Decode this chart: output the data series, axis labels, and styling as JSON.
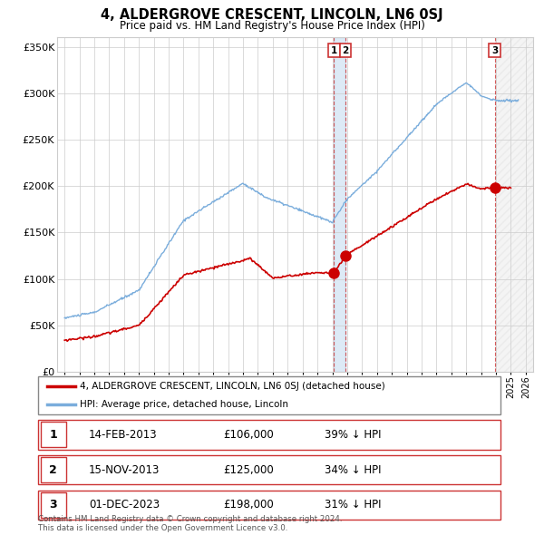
{
  "title": "4, ALDERGROVE CRESCENT, LINCOLN, LN6 0SJ",
  "subtitle": "Price paid vs. HM Land Registry's House Price Index (HPI)",
  "hpi_color": "#7aaddc",
  "price_color": "#cc0000",
  "background_color": "#ffffff",
  "grid_color": "#cccccc",
  "ylim": [
    0,
    360000
  ],
  "yticks": [
    0,
    50000,
    100000,
    150000,
    200000,
    250000,
    300000,
    350000
  ],
  "ytick_labels": [
    "£0",
    "£50K",
    "£100K",
    "£150K",
    "£200K",
    "£250K",
    "£300K",
    "£350K"
  ],
  "legend_entries": [
    {
      "label": "4, ALDERGROVE CRESCENT, LINCOLN, LN6 0SJ (detached house)",
      "color": "#cc0000"
    },
    {
      "label": "HPI: Average price, detached house, Lincoln",
      "color": "#7aaddc"
    }
  ],
  "table_rows": [
    {
      "num": "1",
      "date": "14-FEB-2013",
      "price": "£106,000",
      "pct": "39% ↓ HPI"
    },
    {
      "num": "2",
      "date": "15-NOV-2013",
      "price": "£125,000",
      "pct": "34% ↓ HPI"
    },
    {
      "num": "3",
      "date": "01-DEC-2023",
      "price": "£198,000",
      "pct": "31% ↓ HPI"
    }
  ],
  "footnote": "Contains HM Land Registry data © Crown copyright and database right 2024.\nThis data is licensed under the Open Government Licence v3.0.",
  "xlim": [
    1994.5,
    2026.5
  ],
  "tx1_x": 2013.12,
  "tx1_y": 106000,
  "tx2_x": 2013.88,
  "tx2_y": 125000,
  "tx3_x": 2023.92,
  "tx3_y": 198000
}
